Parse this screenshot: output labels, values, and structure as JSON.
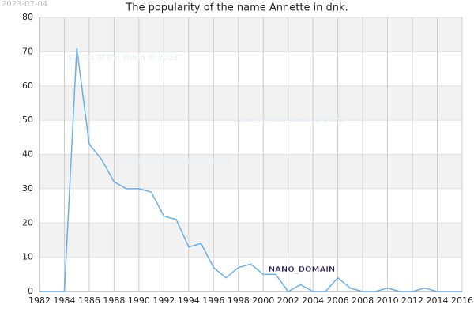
{
  "chart_data": {
    "type": "line",
    "title": "The popularity of the name Annette in dnk.",
    "date": "2023-07-04",
    "watermarks": [
      "Names of the World © 2023",
      "Names of the World © 2023",
      "Names of the World © 2023"
    ],
    "label": "NANO_DOMAIN",
    "x": [
      1982,
      1983,
      1984,
      1985,
      1986,
      1987,
      1988,
      1989,
      1990,
      1991,
      1992,
      1993,
      1994,
      1995,
      1996,
      1997,
      1998,
      1999,
      2000,
      2001,
      2002,
      2003,
      2004,
      2005,
      2006,
      2007,
      2008,
      2009,
      2010,
      2011,
      2012,
      2013,
      2014,
      2015,
      2016
    ],
    "series": [
      {
        "color": "#6aaeea",
        "values": [
          0,
          0,
          0,
          71,
          43,
          38.5,
          32,
          30,
          30,
          29,
          22,
          21,
          13,
          14,
          7,
          4,
          7,
          8,
          5,
          5,
          0,
          2,
          0,
          0,
          4,
          1,
          0,
          0,
          1,
          0,
          0,
          1,
          0,
          0,
          0
        ]
      }
    ],
    "xlim": [
      1982,
      2016
    ],
    "xticks": [
      1982,
      1984,
      1986,
      1988,
      1990,
      1992,
      1994,
      1996,
      1998,
      2000,
      2002,
      2004,
      2006,
      2008,
      2010,
      2012,
      2014,
      2016
    ],
    "ylim": [
      0,
      80
    ],
    "yticks": [
      0,
      10,
      20,
      30,
      40,
      50,
      60,
      70,
      80
    ],
    "grid": true
  }
}
